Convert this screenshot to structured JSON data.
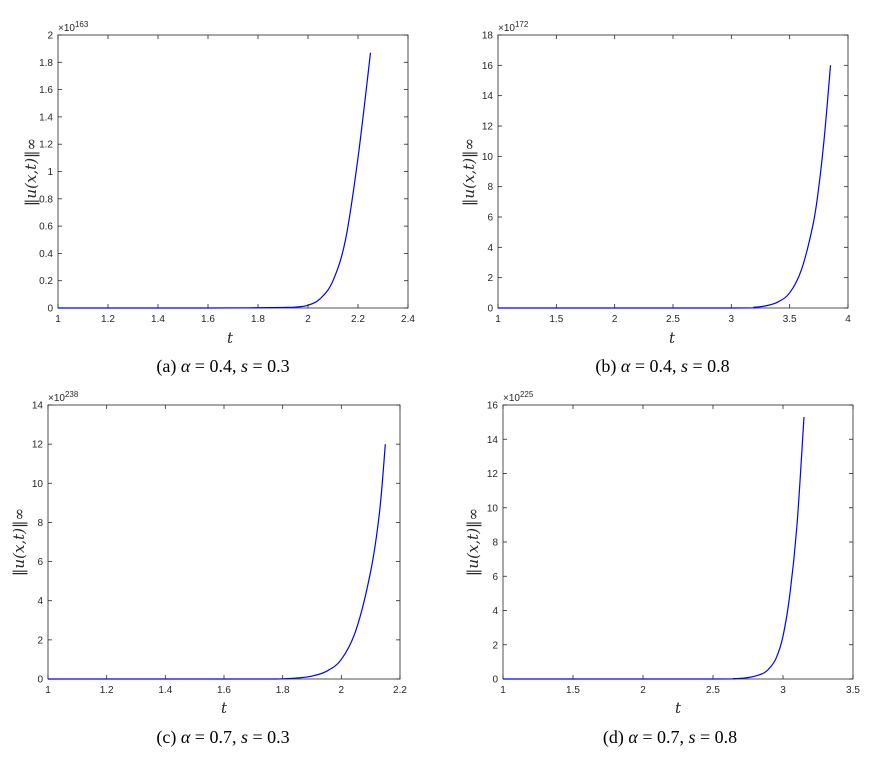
{
  "figure": {
    "panels": [
      {
        "id": "a",
        "caption": {
          "tag": "(a)",
          "alpha_symbol": "α",
          "alpha_value": "= 0.4,",
          "s_symbol": "s",
          "s_value": "= 0.3"
        },
        "exponent": {
          "base": "×10",
          "power": "163"
        }
      },
      {
        "id": "b",
        "caption": {
          "tag": "(b)",
          "alpha_symbol": "α",
          "alpha_value": "= 0.4,",
          "s_symbol": "s",
          "s_value": "= 0.8"
        },
        "exponent": {
          "base": "×10",
          "power": "172"
        }
      },
      {
        "id": "c",
        "caption": {
          "tag": "(c)",
          "alpha_symbol": "α",
          "alpha_value": "= 0.7,",
          "s_symbol": "s",
          "s_value": "= 0.3"
        },
        "exponent": {
          "base": "×10",
          "power": "238"
        }
      },
      {
        "id": "d",
        "caption": {
          "tag": "(d)",
          "alpha_symbol": "α",
          "alpha_value": "= 0.7,",
          "s_symbol": "s",
          "s_value": "= 0.8"
        },
        "exponent": {
          "base": "×10",
          "power": "225"
        }
      }
    ]
  },
  "chart_data": [
    {
      "type": "line",
      "xlabel": "t",
      "ylabel": "‖u(x,t)‖∞",
      "xlim": [
        1,
        2.4
      ],
      "ylim": [
        0,
        2
      ],
      "xticks": [
        1,
        1.2,
        1.4,
        1.6,
        1.8,
        2,
        2.2,
        2.4
      ],
      "xtick_labels": [
        "1",
        "1.2",
        "1.4",
        "1.6",
        "1.8",
        "2",
        "2.2",
        "2.4"
      ],
      "yticks": [
        0,
        0.2,
        0.4,
        0.6,
        0.8,
        1,
        1.2,
        1.4,
        1.6,
        1.8,
        2
      ],
      "ytick_labels": [
        "0",
        "0.2",
        "0.4",
        "0.6",
        "0.8",
        "1",
        "1.2",
        "1.4",
        "1.6",
        "1.8",
        "2"
      ],
      "y_scale_exponent": 163,
      "line_color": "#0000ff",
      "series": [
        {
          "x": [
            1,
            1.6,
            1.8,
            1.9,
            1.95,
            2,
            2.05,
            2.1,
            2.15,
            2.2,
            2.25
          ],
          "y": [
            0,
            0,
            0.002,
            0.004,
            0.007,
            0.02,
            0.07,
            0.2,
            0.5,
            1.1,
            1.87
          ]
        }
      ]
    },
    {
      "type": "line",
      "xlabel": "t",
      "ylabel": "‖u(x,t)‖∞",
      "xlim": [
        1,
        4
      ],
      "ylim": [
        0,
        18
      ],
      "xticks": [
        1,
        1.5,
        2,
        2.5,
        3,
        3.5,
        4
      ],
      "xtick_labels": [
        "1",
        "1.5",
        "2",
        "2.5",
        "3",
        "3.5",
        "4"
      ],
      "yticks": [
        0,
        2,
        4,
        6,
        8,
        10,
        12,
        14,
        16,
        18
      ],
      "ytick_labels": [
        "0",
        "2",
        "4",
        "6",
        "8",
        "10",
        "12",
        "14",
        "16",
        "18"
      ],
      "y_scale_exponent": 172,
      "line_color": "#0000ff",
      "series": [
        {
          "x": [
            1,
            3,
            3.2,
            3.3,
            3.4,
            3.5,
            3.6,
            3.7,
            3.75,
            3.8,
            3.85
          ],
          "y": [
            0,
            0,
            0.05,
            0.15,
            0.4,
            1.0,
            2.5,
            5.5,
            8,
            11.5,
            16
          ]
        }
      ]
    },
    {
      "type": "line",
      "xlabel": "t",
      "ylabel": "‖u(x,t)‖∞",
      "xlim": [
        1,
        2.2
      ],
      "ylim": [
        0,
        14
      ],
      "xticks": [
        1,
        1.2,
        1.4,
        1.6,
        1.8,
        2,
        2.2
      ],
      "xtick_labels": [
        "1",
        "1.2",
        "1.4",
        "1.6",
        "1.8",
        "2",
        "2.2"
      ],
      "yticks": [
        0,
        2,
        4,
        6,
        8,
        10,
        12,
        14
      ],
      "ytick_labels": [
        "0",
        "2",
        "4",
        "6",
        "8",
        "10",
        "12",
        "14"
      ],
      "y_scale_exponent": 238,
      "line_color": "#0000ff",
      "series": [
        {
          "x": [
            1,
            1.7,
            1.8,
            1.85,
            1.9,
            1.95,
            2,
            2.05,
            2.1,
            2.13,
            2.15
          ],
          "y": [
            0,
            0,
            0.01,
            0.05,
            0.15,
            0.4,
            1.0,
            2.5,
            5.5,
            8.5,
            12
          ]
        }
      ]
    },
    {
      "type": "line",
      "xlabel": "t",
      "ylabel": "‖u(x,t)‖∞",
      "xlim": [
        1,
        3.5
      ],
      "ylim": [
        0,
        16
      ],
      "xticks": [
        1,
        1.5,
        2,
        2.5,
        3,
        3.5
      ],
      "xtick_labels": [
        "1",
        "1.5",
        "2",
        "2.5",
        "3",
        "3.5"
      ],
      "yticks": [
        0,
        2,
        4,
        6,
        8,
        10,
        12,
        14,
        16
      ],
      "ytick_labels": [
        "0",
        "2",
        "4",
        "6",
        "8",
        "10",
        "12",
        "14",
        "16"
      ],
      "y_scale_exponent": 225,
      "line_color": "#0000ff",
      "series": [
        {
          "x": [
            1,
            2.5,
            2.65,
            2.75,
            2.85,
            2.9,
            2.95,
            3,
            3.05,
            3.1,
            3.15
          ],
          "y": [
            0,
            0,
            0.02,
            0.08,
            0.3,
            0.6,
            1.2,
            2.5,
            5,
            9,
            15.3
          ]
        }
      ]
    }
  ]
}
